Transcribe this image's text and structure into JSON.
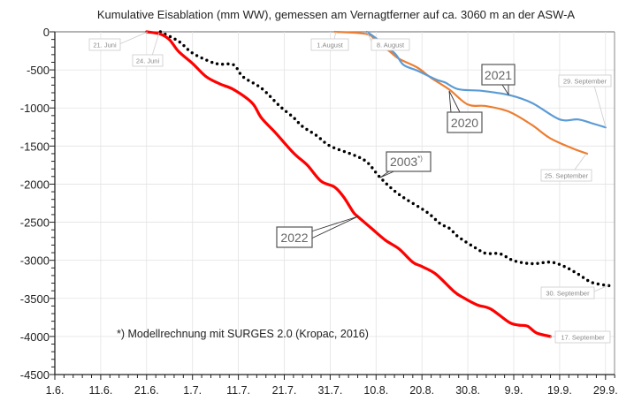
{
  "chart_data": {
    "type": "line",
    "title": "Kumulative Eisablation (mm WW), gemessen am Vernagtferner auf ca. 3060 m an der ASW-A",
    "xlabel": "",
    "ylabel": "",
    "ylim": [
      -4500,
      0
    ],
    "yticks": [
      "0",
      "-500",
      "-1000",
      "-1500",
      "-2000",
      "-2500",
      "-3000",
      "-3500",
      "-4000",
      "-4500"
    ],
    "xticks": [
      "1.6.",
      "11.6.",
      "21.6.",
      "1.7.",
      "11.7.",
      "21.7.",
      "31.7.",
      "10.8.",
      "20.8.",
      "30.8.",
      "9.9.",
      "19.9.",
      "29.9."
    ],
    "xlim": [
      "1.6.",
      "1.10."
    ],
    "grid": true,
    "footnote": "*) Modellrechnung mit SURGES 2.0 (Kropac, 2016)",
    "series": [
      {
        "name": "2022",
        "color": "#ff0000",
        "style": "solid",
        "x": [
          "21.6.",
          "24.6.",
          "26.6.",
          "28.6.",
          "1.7.",
          "4.7.",
          "7.7.",
          "10.7.",
          "14.7.",
          "16.7.",
          "19.7.",
          "23.7.",
          "26.7.",
          "29.7.",
          "1.8.",
          "3.8.",
          "5.8.",
          "6.8.",
          "9.8.",
          "12.8.",
          "15.8.",
          "18.8.",
          "20.8.",
          "23.8.",
          "27.8.",
          "29.8.",
          "1.9.",
          "4.9.",
          "8.9.",
          "10.9.",
          "12.9.",
          "14.9.",
          "17.9."
        ],
        "y": [
          0,
          -30,
          -105,
          -260,
          -415,
          -590,
          -685,
          -760,
          -935,
          -1130,
          -1320,
          -1590,
          -1750,
          -1960,
          -2040,
          -2175,
          -2365,
          -2425,
          -2580,
          -2735,
          -2850,
          -3025,
          -3082,
          -3180,
          -3410,
          -3490,
          -3585,
          -3640,
          -3815,
          -3850,
          -3865,
          -3955,
          -4000
        ]
      },
      {
        "name": "2003*)",
        "color": "#000000",
        "style": "dotted",
        "x": [
          "24.6.",
          "28.6.",
          "1.7.",
          "5.7.",
          "7.7.",
          "10.7.",
          "12.7.",
          "16.7.",
          "20.7.",
          "23.7.",
          "25.7.",
          "28.7.",
          "31.7.",
          "5.8.",
          "8.8.",
          "11.8.",
          "15.8.",
          "21.8.",
          "24.8.",
          "26.8.",
          "28.8.",
          "1.9.",
          "3.9.",
          "6.9.",
          "9.9.",
          "13.9.",
          "17.9.",
          "20.9.",
          "23.9.",
          "26.9.",
          "30.9."
        ],
        "y": [
          0,
          -125,
          -280,
          -395,
          -425,
          -435,
          -590,
          -740,
          -975,
          -1125,
          -1245,
          -1360,
          -1500,
          -1615,
          -1710,
          -1920,
          -2135,
          -2365,
          -2520,
          -2580,
          -2695,
          -2850,
          -2910,
          -2915,
          -3005,
          -3045,
          -3025,
          -3080,
          -3180,
          -3290,
          -3335
        ]
      },
      {
        "name": "2020",
        "color": "#ed7d31",
        "style": "solid",
        "x": [
          "1.8.",
          "8.8.",
          "10.8.",
          "13.8.",
          "15.8.",
          "19.8.",
          "22.8.",
          "26.8.",
          "30.8.",
          "3.9.",
          "8.9.",
          "13.9.",
          "17.9.",
          "22.9.",
          "25.9."
        ],
        "y": [
          0,
          -30,
          -125,
          -260,
          -355,
          -470,
          -605,
          -760,
          -955,
          -975,
          -1050,
          -1225,
          -1400,
          -1535,
          -1600
        ]
      },
      {
        "name": "2021",
        "color": "#5b9bd5",
        "style": "solid",
        "x": [
          "8.8.",
          "10.8.",
          "14.8.",
          "16.8.",
          "19.8.",
          "23.8.",
          "25.8.",
          "28.8.",
          "2.9.",
          "8.9.",
          "13.9.",
          "19.9.",
          "23.9.",
          "26.9.",
          "29.9."
        ],
        "y": [
          0,
          -85,
          -280,
          -435,
          -510,
          -625,
          -665,
          -755,
          -775,
          -830,
          -935,
          -1150,
          -1150,
          -1200,
          -1255
        ]
      }
    ],
    "annotations": {
      "series_labels": {
        "s2022": "2022",
        "s2003": "2003",
        "s2003_sup": "*)",
        "s2020": "2020",
        "s2021": "2021"
      },
      "point_labels": {
        "start_2022": "21. Juni",
        "start_2003": "24. Juni",
        "start_2020": "1.August",
        "start_2021": "8. August",
        "end_2021": "29. September",
        "end_2020": "25. September",
        "end_2003": "30. September",
        "end_2022": "17. September"
      }
    }
  }
}
